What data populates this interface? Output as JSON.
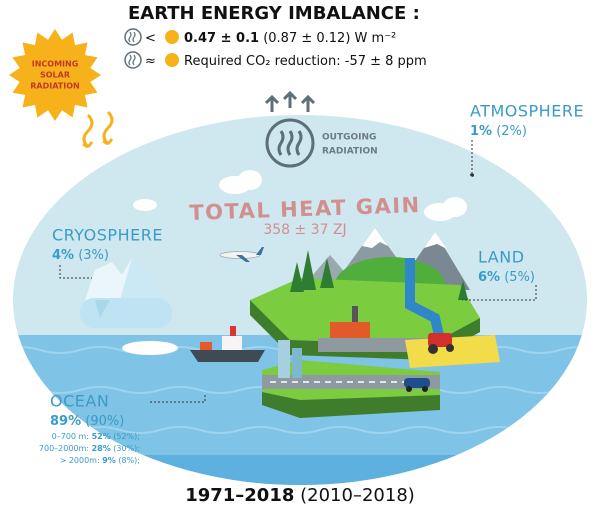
{
  "header": {
    "title": "EARTH ENERGY IMBALANCE :",
    "line1": {
      "symbol": "<",
      "value": "0.47 ± 0.1",
      "paren": "(0.87 ± 0.12)",
      "unit": "W m⁻²"
    },
    "line2": {
      "symbol": "≈",
      "text": "Required CO₂ reduction: -57 ± 8 ppm"
    }
  },
  "sun_label": [
    "INCOMING",
    "SOLAR",
    "RADIATION"
  ],
  "outgoing_label": [
    "OUTGOING",
    "RADIATION"
  ],
  "total": {
    "title": "TOTAL HEAT GAIN",
    "value": "358 ± 37 ZJ"
  },
  "components": [
    {
      "name": "ATMOSPHERE",
      "share": "1%",
      "paren": "(2%)"
    },
    {
      "name": "CRYOSPHERE",
      "share": "4%",
      "paren": "(3%)"
    },
    {
      "name": "LAND",
      "share": "6%",
      "paren": "(5%)"
    },
    {
      "name": "OCEAN",
      "share": "89%",
      "paren": "(90%)"
    }
  ],
  "ocean_layers": [
    {
      "depth": "0–700 m:",
      "share": "52%",
      "paren": "(52%);"
    },
    {
      "depth": "700–2000m:",
      "share": "28%",
      "paren": "(30%);"
    },
    {
      "depth": "> 2000m:",
      "share": "9%",
      "paren": "(8%);"
    }
  ],
  "period": {
    "main": "1971–2018",
    "paren": "(2010–2018)"
  }
}
